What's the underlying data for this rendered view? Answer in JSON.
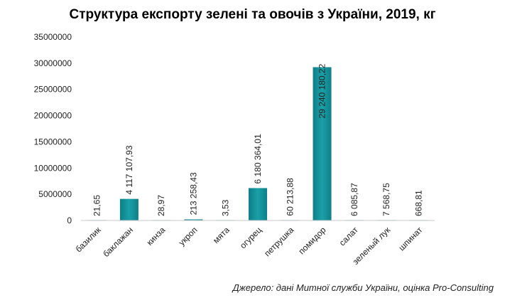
{
  "chart_data": {
    "type": "bar",
    "title": "Структура експорту зелені та овочів з України, 2019, кг",
    "categories": [
      "базилик",
      "баклажан",
      "кинза",
      "укроп",
      "мята",
      "огурец",
      "петрушка",
      "помидор",
      "салат",
      "зеленый лук",
      "шпинат"
    ],
    "values": [
      21.65,
      4117107.93,
      28.97,
      213258.43,
      3.53,
      6180364.01,
      60213.88,
      29240180.22,
      6085.87,
      7568.75,
      668.81
    ],
    "data_labels": [
      "21,65",
      "4 117 107,93",
      "28,97",
      "213 258,43",
      "3,53",
      "6 180 364,01",
      "60 213,88",
      "29 240 180,22",
      "6 085,87",
      "7 568,75",
      "668,81"
    ],
    "y_ticks": [
      "0",
      "5000000",
      "10000000",
      "15000000",
      "20000000",
      "25000000",
      "30000000",
      "35000000"
    ],
    "ylim": [
      0,
      35000000
    ],
    "grid": false,
    "legend": "none",
    "bar_color": "#1aa0a8",
    "bar_color_dark": "#0e7f87",
    "xlabel": "",
    "ylabel": ""
  },
  "source_note": "Джерело: дані Митної служби України, оцінка Pro-Consulting"
}
